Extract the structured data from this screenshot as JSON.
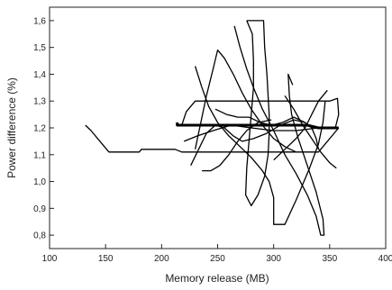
{
  "chart_data": {
    "type": "line",
    "title": "",
    "xlabel": "Memory release (MB)",
    "ylabel": "Power difference (%)",
    "xlim": [
      100,
      400
    ],
    "ylim": [
      0.75,
      1.65
    ],
    "x_ticks": [
      100,
      150,
      200,
      250,
      300,
      350,
      400
    ],
    "x_tick_labels": [
      "100",
      "150",
      "200",
      "250",
      "300",
      "350",
      "400"
    ],
    "y_ticks": [
      0.8,
      0.9,
      1.0,
      1.1,
      1.2,
      1.3,
      1.4,
      1.5,
      1.6
    ],
    "y_tick_labels": [
      "0,8",
      "0,9",
      "1,0",
      "1,1",
      "1,2",
      "1,3",
      "1,4",
      "1,5",
      "1,6"
    ],
    "grid": false,
    "legend": "none",
    "line_color": "#000000",
    "series": [
      {
        "values": [
          [
            132,
            1.21
          ],
          [
            137,
            1.19
          ],
          [
            145,
            1.15
          ],
          [
            153,
            1.11
          ],
          [
            165,
            1.11
          ],
          [
            180,
            1.11
          ],
          [
            182,
            1.12
          ],
          [
            200,
            1.12
          ],
          [
            212,
            1.12
          ],
          [
            218,
            1.11
          ],
          [
            225,
            1.11
          ],
          [
            235,
            1.11
          ],
          [
            245,
            1.11
          ],
          [
            260,
            1.11
          ],
          [
            280,
            1.11
          ],
          [
            300,
            1.11
          ],
          [
            320,
            1.11
          ],
          [
            340,
            1.11
          ],
          [
            358,
            1.2
          ]
        ]
      },
      {
        "values": [
          [
            218,
            1.21
          ],
          [
            222,
            1.26
          ],
          [
            230,
            1.3
          ],
          [
            250,
            1.3
          ],
          [
            280,
            1.3
          ],
          [
            300,
            1.3
          ],
          [
            320,
            1.3
          ],
          [
            340,
            1.3
          ],
          [
            350,
            1.3
          ],
          [
            357,
            1.31
          ],
          [
            358,
            1.25
          ],
          [
            355,
            1.2
          ]
        ]
      },
      {
        "values": [
          [
            214,
            1.22
          ],
          [
            214,
            1.21
          ],
          [
            230,
            1.21
          ],
          [
            250,
            1.21
          ],
          [
            270,
            1.21
          ],
          [
            290,
            1.21
          ],
          [
            310,
            1.21
          ],
          [
            330,
            1.21
          ],
          [
            340,
            1.2
          ],
          [
            352,
            1.2
          ],
          [
            358,
            1.2
          ]
        ]
      },
      {
        "values": [
          [
            230,
            1.12
          ],
          [
            234,
            1.2
          ],
          [
            240,
            1.32
          ],
          [
            246,
            1.42
          ],
          [
            250,
            1.49
          ],
          [
            256,
            1.46
          ],
          [
            264,
            1.4
          ],
          [
            272,
            1.33
          ],
          [
            280,
            1.27
          ],
          [
            290,
            1.21
          ],
          [
            300,
            1.16
          ],
          [
            310,
            1.13
          ],
          [
            320,
            1.11
          ]
        ]
      },
      {
        "values": [
          [
            230,
            1.43
          ],
          [
            236,
            1.35
          ],
          [
            242,
            1.28
          ],
          [
            250,
            1.22
          ],
          [
            260,
            1.17
          ],
          [
            270,
            1.13
          ],
          [
            280,
            1.09
          ],
          [
            290,
            1.04
          ],
          [
            296,
            1.0
          ],
          [
            300,
            0.94
          ],
          [
            300,
            0.84
          ],
          [
            310,
            0.84
          ],
          [
            320,
            0.93
          ],
          [
            332,
            1.05
          ],
          [
            340,
            1.14
          ],
          [
            344,
            1.22
          ],
          [
            346,
            1.3
          ]
        ]
      },
      {
        "values": [
          [
            276,
            1.6
          ],
          [
            291,
            1.6
          ],
          [
            292,
            1.5
          ],
          [
            294,
            1.4
          ],
          [
            295,
            1.32
          ],
          [
            296,
            1.25
          ],
          [
            296,
            1.18
          ],
          [
            295,
            1.1
          ],
          [
            292,
            1.02
          ],
          [
            286,
            0.95
          ],
          [
            280,
            0.91
          ],
          [
            275,
            0.95
          ],
          [
            276,
            1.05
          ],
          [
            278,
            1.15
          ],
          [
            280,
            1.25
          ],
          [
            282,
            1.35
          ],
          [
            282,
            1.45
          ],
          [
            281,
            1.55
          ],
          [
            276,
            1.6
          ]
        ]
      },
      {
        "values": [
          [
            265,
            1.58
          ],
          [
            270,
            1.5
          ],
          [
            276,
            1.42
          ],
          [
            282,
            1.35
          ],
          [
            290,
            1.27
          ],
          [
            300,
            1.19
          ],
          [
            310,
            1.1
          ],
          [
            320,
            1.03
          ],
          [
            330,
            0.95
          ],
          [
            338,
            0.87
          ],
          [
            342,
            0.8
          ],
          [
            345,
            0.8
          ],
          [
            344,
            0.86
          ],
          [
            338,
            0.96
          ],
          [
            330,
            1.06
          ],
          [
            322,
            1.16
          ],
          [
            316,
            1.25
          ],
          [
            314,
            1.32
          ],
          [
            313,
            1.4
          ],
          [
            317,
            1.36
          ]
        ]
      },
      {
        "values": [
          [
            236,
            1.04
          ],
          [
            244,
            1.04
          ],
          [
            252,
            1.06
          ],
          [
            260,
            1.1
          ],
          [
            268,
            1.15
          ],
          [
            276,
            1.19
          ],
          [
            286,
            1.22
          ],
          [
            298,
            1.23
          ]
        ]
      },
      {
        "values": [
          [
            226,
            1.06
          ],
          [
            233,
            1.12
          ],
          [
            240,
            1.18
          ],
          [
            248,
            1.21
          ],
          [
            256,
            1.2
          ],
          [
            264,
            1.17
          ],
          [
            272,
            1.15
          ],
          [
            282,
            1.16
          ],
          [
            294,
            1.18
          ],
          [
            306,
            1.21
          ],
          [
            318,
            1.23
          ],
          [
            328,
            1.22
          ],
          [
            334,
            1.2
          ],
          [
            338,
            1.16
          ],
          [
            340,
            1.12
          ]
        ]
      },
      {
        "values": [
          [
            310,
            1.32
          ],
          [
            318,
            1.27
          ],
          [
            326,
            1.21
          ],
          [
            334,
            1.16
          ],
          [
            342,
            1.11
          ],
          [
            350,
            1.07
          ],
          [
            356,
            1.05
          ]
        ]
      },
      {
        "values": [
          [
            300,
            1.08
          ],
          [
            310,
            1.12
          ],
          [
            320,
            1.16
          ],
          [
            328,
            1.2
          ],
          [
            334,
            1.25
          ],
          [
            340,
            1.3
          ],
          [
            348,
            1.34
          ]
        ]
      },
      {
        "values": [
          [
            248,
            1.27
          ],
          [
            258,
            1.25
          ],
          [
            268,
            1.24
          ],
          [
            278,
            1.24
          ],
          [
            288,
            1.22
          ],
          [
            298,
            1.21
          ],
          [
            308,
            1.22
          ],
          [
            318,
            1.24
          ],
          [
            328,
            1.22
          ]
        ]
      },
      {
        "values": [
          [
            220,
            1.15
          ],
          [
            232,
            1.17
          ],
          [
            246,
            1.19
          ],
          [
            262,
            1.21
          ],
          [
            280,
            1.2
          ],
          [
            300,
            1.19
          ],
          [
            320,
            1.19
          ],
          [
            340,
            1.2
          ]
        ]
      }
    ]
  }
}
